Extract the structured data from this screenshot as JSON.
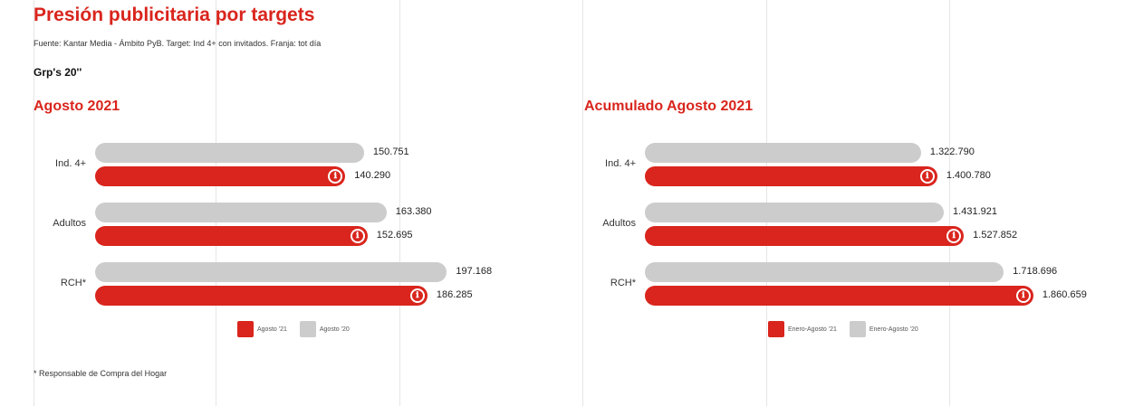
{
  "title": "Presión publicitaria por targets",
  "source": "Fuente: Kantar Media - Ámbito PyB. Target: Ind 4+ con invitados. Franja: tot día",
  "unit": "Grp's 20''",
  "footnote": "* Responsable de Compra del Hogar",
  "info_icon": "ℹ",
  "colors": {
    "accent": "#d9251d",
    "previous": "#cccccc"
  },
  "chart_data": [
    {
      "type": "bar",
      "orientation": "horizontal",
      "title": "Agosto 2021",
      "categories": [
        "Ind. 4+",
        "Adultos",
        "RCH*"
      ],
      "series": [
        {
          "name": "Agosto '20",
          "color": "#cccccc",
          "values": [
            150.751,
            163.38,
            197.168
          ],
          "labels": [
            "150.751",
            "163.380",
            "197.168"
          ]
        },
        {
          "name": "Agosto '21",
          "color": "#d9251d",
          "values": [
            140.29,
            152.695,
            186.285
          ],
          "labels": [
            "140.290",
            "152.695",
            "186.285"
          ]
        }
      ],
      "legend": [
        {
          "name": "Agosto '21",
          "color": "#d9251d"
        },
        {
          "name": "Agosto '20",
          "color": "#cccccc"
        }
      ],
      "xlim": [
        0,
        230
      ],
      "legend_position": "bottom"
    },
    {
      "type": "bar",
      "orientation": "horizontal",
      "title": "Acumulado Agosto 2021",
      "categories": [
        "Ind. 4+",
        "Adultos",
        "RCH*"
      ],
      "series": [
        {
          "name": "Enero-Agosto '20",
          "color": "#cccccc",
          "values": [
            1322.79,
            1431.921,
            1718.696
          ],
          "labels": [
            "1.322.790",
            "1.431.921",
            "1.718.696"
          ]
        },
        {
          "name": "Enero-Agosto '21",
          "color": "#d9251d",
          "values": [
            1400.78,
            1527.852,
            1860.659
          ],
          "labels": [
            "1.400.780",
            "1.527.852",
            "1.860.659"
          ]
        }
      ],
      "legend": [
        {
          "name": "Enero-Agosto '21",
          "color": "#d9251d"
        },
        {
          "name": "Enero-Agosto '20",
          "color": "#cccccc"
        }
      ],
      "xlim": [
        0,
        2000
      ],
      "legend_position": "bottom"
    }
  ]
}
